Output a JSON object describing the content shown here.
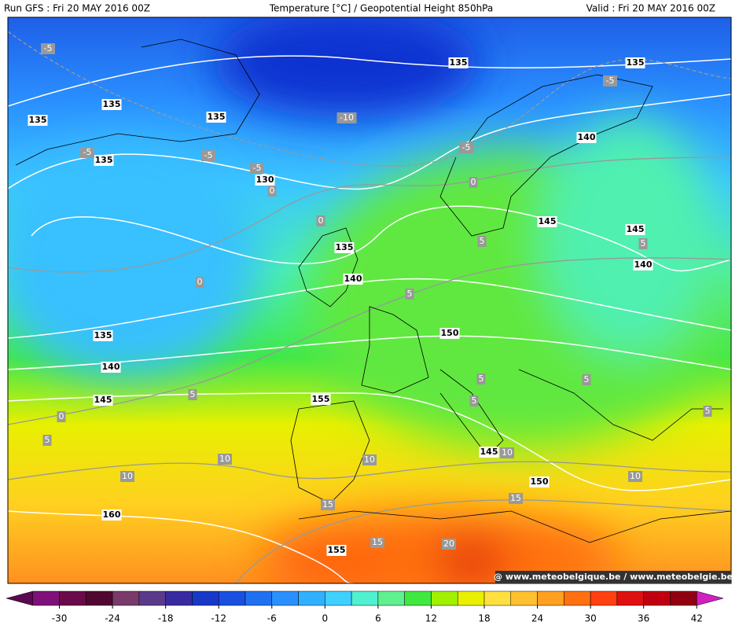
{
  "header": {
    "left": "Run GFS : Fri 20 MAY 2016 00Z",
    "center": "Temperature [°C] / Geopotential Height 850hPa",
    "right": "Valid : Fri 20 MAY 2016 00Z"
  },
  "labels": {
    "height": [
      "135",
      "135",
      "135",
      "135",
      "135",
      "135",
      "140",
      "130",
      "145",
      "145",
      "135",
      "140",
      "140",
      "150",
      "135",
      "140",
      "145",
      "155",
      "145",
      "150",
      "160",
      "155"
    ],
    "temperature": [
      "-5",
      "-5",
      "-10",
      "-5",
      "-5",
      "-5",
      "-5",
      "0",
      "0",
      "0",
      "5",
      "5",
      "0",
      "5",
      "5",
      "0",
      "5",
      "5",
      "5",
      "5",
      "5",
      "10",
      "10",
      "10",
      "10",
      "10",
      "15",
      "15",
      "15",
      "20"
    ]
  },
  "watermark": "@ www.meteobelgique.be / www.meteobelgie.be",
  "colorbar": {
    "lim": [
      -36,
      45
    ],
    "ticks": [
      -30,
      -24,
      -18,
      -12,
      -6,
      0,
      6,
      12,
      18,
      24,
      30,
      36,
      42
    ],
    "colors": [
      "#5a0a50",
      "#80107a",
      "#6a0a4a",
      "#500830",
      "#7a3a6a",
      "#5a3a8a",
      "#3a2aa0",
      "#1838c8",
      "#1a50e0",
      "#2070f0",
      "#2a90ff",
      "#30b0ff",
      "#40d0ff",
      "#50f0d0",
      "#60f090",
      "#40e840",
      "#a0f000",
      "#e8f000",
      "#ffe040",
      "#ffc030",
      "#ffa020",
      "#ff7010",
      "#ff4010",
      "#e01010",
      "#c00010",
      "#900010",
      "#d020c0"
    ]
  }
}
